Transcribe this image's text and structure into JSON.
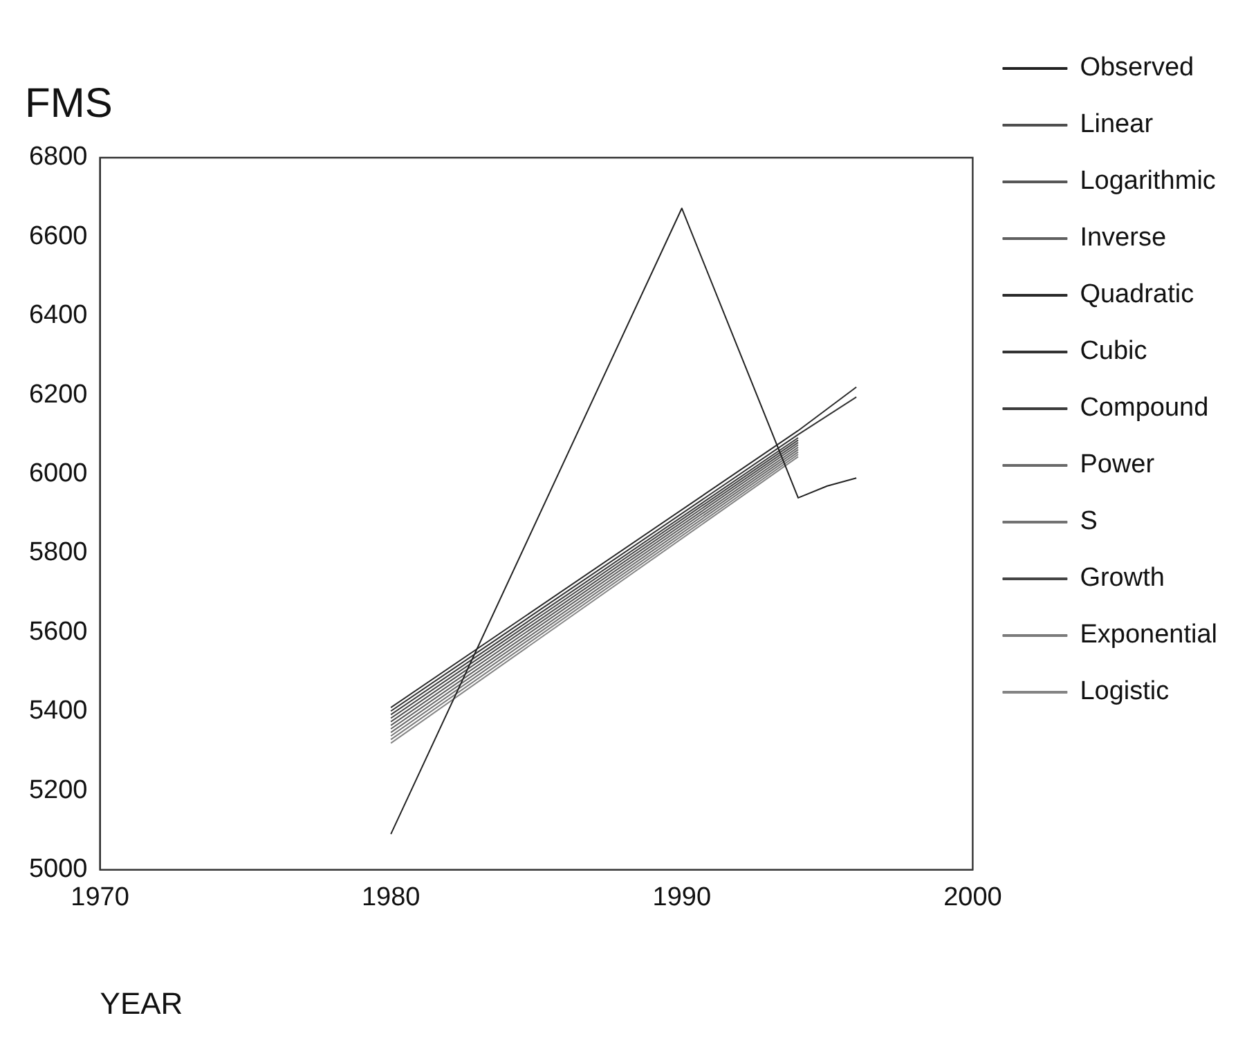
{
  "chart_data": {
    "type": "line",
    "title": "FMS",
    "xlabel": "YEAR",
    "xlim": [
      1970,
      2000
    ],
    "xticks": [
      1970,
      1980,
      1990,
      2000
    ],
    "ylim": [
      5000,
      6800
    ],
    "yticks": [
      5000,
      5200,
      5400,
      5600,
      5800,
      6000,
      6200,
      6400,
      6600,
      6800
    ],
    "grid": false,
    "legend": "right",
    "marker": "none",
    "line_style": "solid",
    "series": [
      {
        "name": "Observed",
        "color": "#222222",
        "x": [
          1980,
          1990,
          1994,
          1995,
          1996
        ],
        "values": [
          5090,
          6672,
          5940,
          5970,
          5990
        ]
      },
      {
        "name": "Linear",
        "color": "#4e4e4e",
        "x": [
          1980,
          1994
        ],
        "values": [
          5374,
          6080
        ]
      },
      {
        "name": "Logarithmic",
        "color": "#575757",
        "x": [
          1980,
          1994
        ],
        "values": [
          5365,
          6074
        ]
      },
      {
        "name": "Inverse",
        "color": "#606060",
        "x": [
          1980,
          1994
        ],
        "values": [
          5356,
          6068
        ]
      },
      {
        "name": "Quadratic",
        "color": "#2a2a2a",
        "x": [
          1980,
          1994,
          1996
        ],
        "values": [
          5410,
          6110,
          6220
        ]
      },
      {
        "name": "Cubic",
        "color": "#333333",
        "x": [
          1980,
          1994,
          1996
        ],
        "values": [
          5401,
          6100,
          6195
        ]
      },
      {
        "name": "Compound",
        "color": "#3c3c3c",
        "x": [
          1980,
          1994
        ],
        "values": [
          5392,
          6092
        ]
      },
      {
        "name": "Power",
        "color": "#696969",
        "x": [
          1980,
          1994
        ],
        "values": [
          5347,
          6062
        ]
      },
      {
        "name": "S",
        "color": "#727272",
        "x": [
          1980,
          1994
        ],
        "values": [
          5338,
          6056
        ]
      },
      {
        "name": "Growth",
        "color": "#454545",
        "x": [
          1980,
          1994
        ],
        "values": [
          5383,
          6086
        ]
      },
      {
        "name": "Exponential",
        "color": "#7b7b7b",
        "x": [
          1980,
          1994
        ],
        "values": [
          5329,
          6050
        ]
      },
      {
        "name": "Logistic",
        "color": "#848484",
        "x": [
          1980,
          1994
        ],
        "values": [
          5320,
          6044
        ]
      }
    ]
  }
}
